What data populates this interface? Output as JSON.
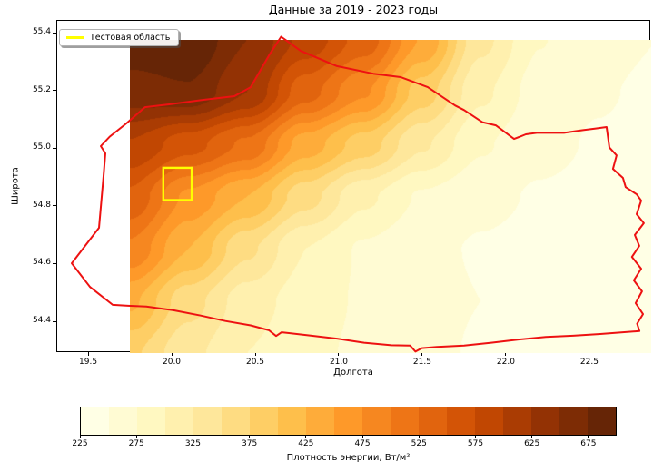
{
  "figure": {
    "background": "#ffffff"
  },
  "chart_data": {
    "type": "heatmap",
    "subtype": "filled-contour-map",
    "title": "Данные за 2019 - 2023 годы",
    "xlabel": "Долгота",
    "ylabel": "Широта",
    "xlim": [
      19.315,
      22.87
    ],
    "ylim": [
      54.29,
      55.441
    ],
    "xticks": [
      19.5,
      20.0,
      20.5,
      21.0,
      21.5,
      22.0,
      22.5
    ],
    "yticks": [
      54.4,
      54.6,
      54.8,
      55.0,
      55.2,
      55.4
    ],
    "grid": "off",
    "legend": {
      "label": "Тестовая область",
      "position": "upper left",
      "swatch_color": "#ffff00"
    },
    "colorbar": {
      "label": "Плотность энергии, Вт/м²",
      "orientation": "horizontal",
      "vmin": 225,
      "vmax": 700,
      "step": 25,
      "ticks": [
        225,
        275,
        325,
        375,
        425,
        475,
        525,
        575,
        625,
        675
      ],
      "colormap": "YlOrBr",
      "anchors": [
        "#ffffe5",
        "#fff7bc",
        "#fee391",
        "#fec44f",
        "#fe9929",
        "#ec7014",
        "#cc4c02",
        "#993404",
        "#662506"
      ]
    },
    "field": {
      "units": "Вт/м²",
      "extent": {
        "lon": [
          19.75,
          22.87
        ],
        "lat": [
          54.29,
          55.375
        ]
      },
      "lons": [
        19.75,
        20.1,
        20.45,
        20.8,
        21.15,
        21.5,
        21.85,
        22.2,
        22.55,
        22.9
      ],
      "lats": [
        55.375,
        55.194,
        55.013,
        54.832,
        54.651,
        54.47,
        54.289
      ],
      "values": [
        [
          690,
          700,
          650,
          592,
          540,
          448,
          332,
          276,
          258,
          250
        ],
        [
          665,
          672,
          625,
          535,
          478,
          388,
          305,
          264,
          252,
          246
        ],
        [
          598,
          560,
          520,
          438,
          388,
          328,
          278,
          256,
          248,
          242
        ],
        [
          545,
          470,
          425,
          360,
          305,
          272,
          256,
          248,
          244,
          240
        ],
        [
          495,
          425,
          355,
          300,
          272,
          256,
          248,
          243,
          241,
          237
        ],
        [
          430,
          360,
          312,
          288,
          272,
          258,
          250,
          244,
          241,
          237
        ],
        [
          380,
          332,
          300,
          282,
          270,
          258,
          247,
          241,
          238,
          234
        ]
      ]
    },
    "test_area": {
      "lon": [
        19.95,
        20.12
      ],
      "lat": [
        54.82,
        54.932
      ],
      "color": "#ffff00"
    },
    "region_boundary": {
      "color": "#ed1111",
      "points": [
        [
          19.402,
          54.601
        ],
        [
          19.565,
          54.724
        ],
        [
          19.592,
          54.903
        ],
        [
          19.603,
          54.982
        ],
        [
          19.576,
          55.007
        ],
        [
          19.63,
          55.04
        ],
        [
          19.73,
          55.086
        ],
        [
          19.84,
          55.142
        ],
        [
          19.99,
          55.152
        ],
        [
          20.174,
          55.166
        ],
        [
          20.375,
          55.18
        ],
        [
          20.473,
          55.211
        ],
        [
          20.582,
          55.321
        ],
        [
          20.655,
          55.386
        ],
        [
          20.772,
          55.337
        ],
        [
          20.989,
          55.284
        ],
        [
          21.207,
          55.258
        ],
        [
          21.37,
          55.246
        ],
        [
          21.533,
          55.211
        ],
        [
          21.696,
          55.148
        ],
        [
          21.75,
          55.132
        ],
        [
          21.859,
          55.09
        ],
        [
          21.94,
          55.079
        ],
        [
          22.049,
          55.032
        ],
        [
          22.12,
          55.048
        ],
        [
          22.185,
          55.053
        ],
        [
          22.348,
          55.053
        ],
        [
          22.457,
          55.062
        ],
        [
          22.538,
          55.068
        ],
        [
          22.603,
          55.073
        ],
        [
          22.62,
          55.002
        ],
        [
          22.663,
          54.975
        ],
        [
          22.641,
          54.928
        ],
        [
          22.701,
          54.897
        ],
        [
          22.717,
          54.865
        ],
        [
          22.783,
          54.84
        ],
        [
          22.81,
          54.818
        ],
        [
          22.783,
          54.771
        ],
        [
          22.826,
          54.74
        ],
        [
          22.772,
          54.699
        ],
        [
          22.799,
          54.661
        ],
        [
          22.755,
          54.623
        ],
        [
          22.81,
          54.582
        ],
        [
          22.766,
          54.542
        ],
        [
          22.815,
          54.504
        ],
        [
          22.777,
          54.463
        ],
        [
          22.821,
          54.425
        ],
        [
          22.786,
          54.392
        ],
        [
          22.8,
          54.366
        ],
        [
          22.565,
          54.356
        ],
        [
          22.402,
          54.35
        ],
        [
          22.239,
          54.346
        ],
        [
          22.076,
          54.337
        ],
        [
          21.913,
          54.326
        ],
        [
          21.75,
          54.316
        ],
        [
          21.587,
          54.311
        ],
        [
          21.497,
          54.307
        ],
        [
          21.459,
          54.295
        ],
        [
          21.427,
          54.316
        ],
        [
          21.315,
          54.317
        ],
        [
          21.152,
          54.326
        ],
        [
          20.989,
          54.34
        ],
        [
          20.826,
          54.351
        ],
        [
          20.658,
          54.362
        ],
        [
          20.625,
          54.349
        ],
        [
          20.582,
          54.369
        ],
        [
          20.473,
          54.386
        ],
        [
          20.321,
          54.401
        ],
        [
          20.174,
          54.42
        ],
        [
          20.011,
          54.438
        ],
        [
          19.848,
          54.451
        ],
        [
          19.739,
          54.454
        ],
        [
          19.647,
          54.457
        ],
        [
          19.511,
          54.519
        ]
      ]
    }
  }
}
